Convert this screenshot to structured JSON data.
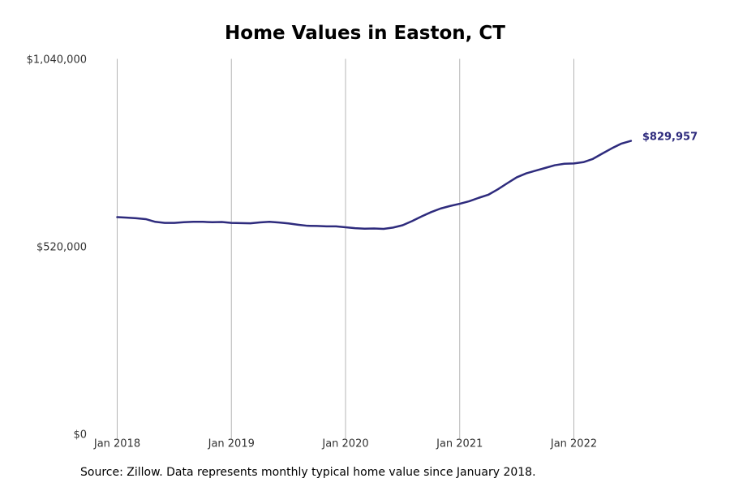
{
  "chart_data": {
    "type": "line",
    "title": "Home Values in Easton, CT",
    "xlabel": "",
    "ylabel": "",
    "x_start": "2018-01",
    "x_ticks": [
      {
        "label": "Jan 2018",
        "date": "2018-01"
      },
      {
        "label": "Jan 2019",
        "date": "2019-01"
      },
      {
        "label": "Jan 2020",
        "date": "2020-01"
      },
      {
        "label": "Jan 2021",
        "date": "2021-01"
      },
      {
        "label": "Jan 2022",
        "date": "2022-01"
      }
    ],
    "y_ticks": [
      {
        "label": "$0",
        "value": 0
      },
      {
        "label": "$520,000",
        "value": 520000
      },
      {
        "label": "$1,040,000",
        "value": 1040000
      }
    ],
    "ylim": [
      0,
      1040000
    ],
    "grid": {
      "vertical": true,
      "horizontal": false
    },
    "series": [
      {
        "color": "#2e2b7d",
        "dates": [
          "2018-01",
          "2018-02",
          "2018-03",
          "2018-04",
          "2018-05",
          "2018-06",
          "2018-07",
          "2018-08",
          "2018-09",
          "2018-10",
          "2018-11",
          "2018-12",
          "2019-01",
          "2019-02",
          "2019-03",
          "2019-04",
          "2019-05",
          "2019-06",
          "2019-07",
          "2019-08",
          "2019-09",
          "2019-10",
          "2019-11",
          "2019-12",
          "2020-01",
          "2020-02",
          "2020-03",
          "2020-04",
          "2020-05",
          "2020-06",
          "2020-07",
          "2020-08",
          "2020-09",
          "2020-10",
          "2020-11",
          "2020-12",
          "2021-01",
          "2021-02",
          "2021-03",
          "2021-04",
          "2021-05",
          "2021-06",
          "2021-07",
          "2021-08",
          "2021-09",
          "2021-10",
          "2021-11",
          "2021-12",
          "2022-01",
          "2022-02",
          "2022-03",
          "2022-04",
          "2022-05",
          "2022-06",
          "2022-07"
        ],
        "values": [
          601000,
          599500,
          598000,
          595500,
          588000,
          585000,
          585000,
          587000,
          588000,
          588000,
          587000,
          587500,
          585000,
          584500,
          584000,
          586500,
          588000,
          586000,
          583500,
          580000,
          577000,
          576500,
          575500,
          575500,
          573000,
          570500,
          569000,
          569500,
          568500,
          572000,
          578500,
          590000,
          603000,
          615000,
          625000,
          632000,
          638000,
          645000,
          654500,
          663000,
          678000,
          695000,
          711500,
          722500,
          730000,
          737500,
          745000,
          749000,
          750000,
          753500,
          762500,
          777500,
          792000,
          805000,
          812500
        ],
        "end_label": "$829,957"
      }
    ]
  },
  "source_note": "Source: Zillow. Data represents monthly typical home value since January 2018."
}
